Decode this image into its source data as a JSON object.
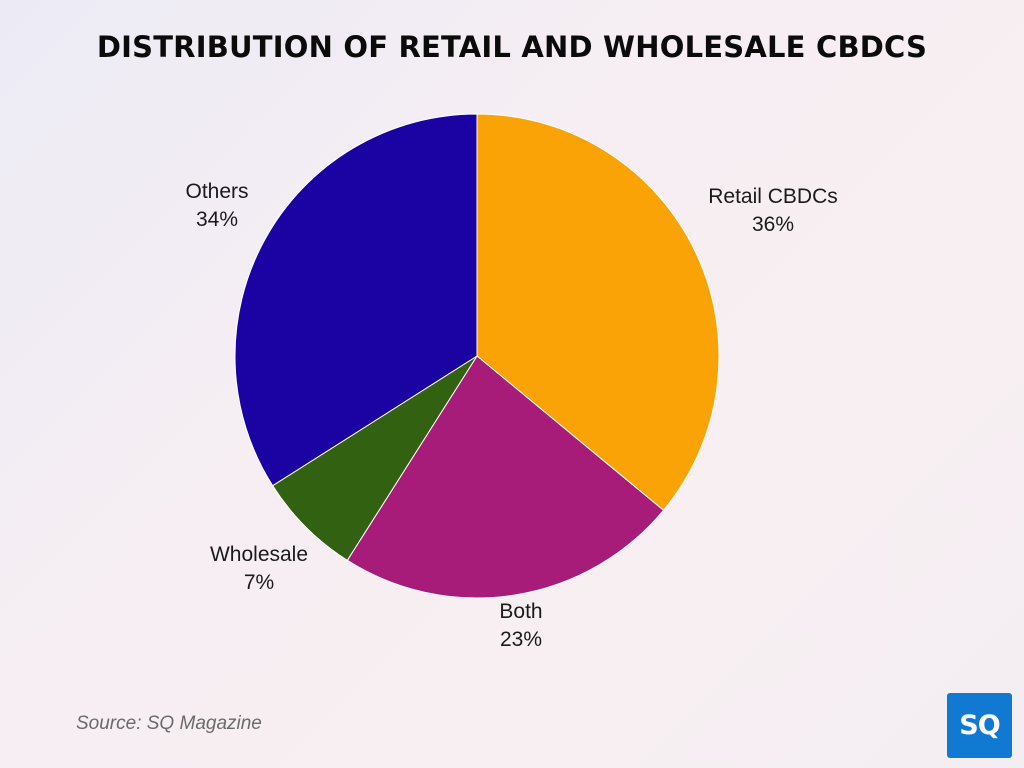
{
  "chart_data": {
    "type": "pie",
    "title": "DISTRIBUTION OF RETAIL AND WHOLESALE CBDCS",
    "categories": [
      "Retail CBDCs",
      "Both",
      "Wholesale",
      "Others"
    ],
    "values": [
      36,
      23,
      7,
      34
    ],
    "value_labels": [
      "36%",
      "23%",
      "7%",
      "34%"
    ],
    "colors": [
      "#FAA307",
      "#A61C78",
      "#326112",
      "#1B02A3"
    ],
    "legend": "none",
    "start_angle_deg": 0,
    "direction": "clockwise"
  },
  "footer": {
    "source": "Source: SQ Magazine",
    "logo_text": "SQ"
  }
}
